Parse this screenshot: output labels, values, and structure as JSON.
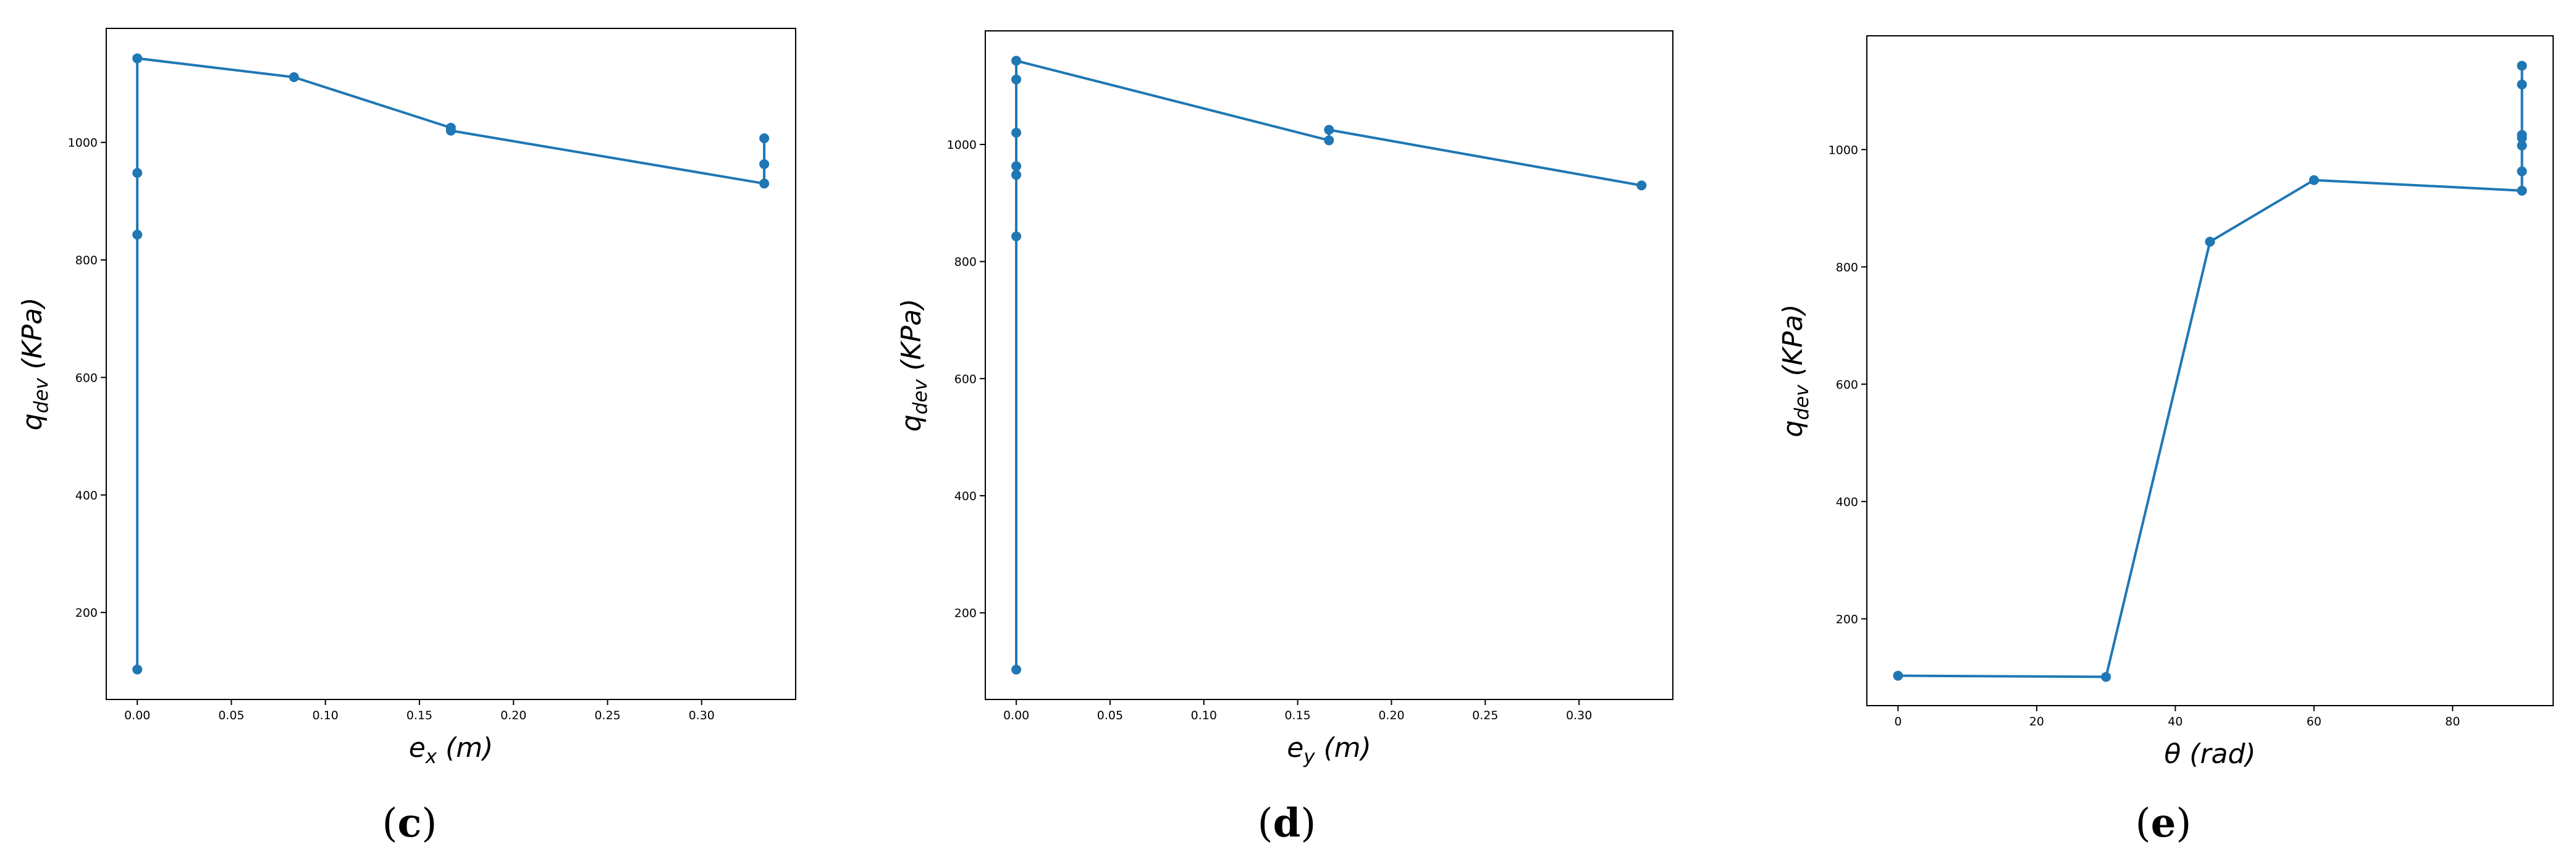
{
  "theme": {
    "series_color": "#1f77b4",
    "axes_color": "#000000"
  },
  "chart_data": [
    {
      "type": "line",
      "panel_label": "c",
      "xlabel": {
        "main": "e",
        "sub": "x",
        "unit": " (m)"
      },
      "ylabel": {
        "main": "q",
        "sub": "dev",
        "unit": " (KPa)"
      },
      "xlim": [
        -0.0165,
        0.35
      ],
      "ylim": [
        52,
        1194
      ],
      "xticks": [
        0.0,
        0.05,
        0.1,
        0.15,
        0.2,
        0.25,
        0.3
      ],
      "xtick_labels": [
        "0.00",
        "0.05",
        "0.10",
        "0.15",
        "0.20",
        "0.25",
        "0.30"
      ],
      "yticks": [
        200,
        400,
        600,
        800,
        1000
      ],
      "ytick_labels": [
        "200",
        "400",
        "600",
        "800",
        "1000"
      ],
      "grid": false,
      "legend": "none",
      "series": [
        {
          "x": [
            0.0,
            0.0,
            0.0,
            0.0,
            0.0833,
            0.1667,
            0.1667,
            0.3333,
            0.3333,
            0.3333
          ],
          "y": [
            103,
            843,
            948,
            1143,
            1111,
            1025,
            1020,
            930,
            963,
            1007
          ]
        }
      ]
    },
    {
      "type": "line",
      "panel_label": "d",
      "xlabel": {
        "main": "e",
        "sub": "y",
        "unit": " (m)"
      },
      "ylabel": {
        "main": "q",
        "sub": "dev",
        "unit": " (KPa)"
      },
      "xlim": [
        -0.0165,
        0.35
      ],
      "ylim": [
        52,
        1194
      ],
      "xticks": [
        0.0,
        0.05,
        0.1,
        0.15,
        0.2,
        0.25,
        0.3
      ],
      "xtick_labels": [
        "0.00",
        "0.05",
        "0.10",
        "0.15",
        "0.20",
        "0.25",
        "0.30"
      ],
      "yticks": [
        200,
        400,
        600,
        800,
        1000
      ],
      "ytick_labels": [
        "200",
        "400",
        "600",
        "800",
        "1000"
      ],
      "grid": false,
      "legend": "none",
      "series": [
        {
          "x": [
            0.0,
            0.0,
            0.0,
            0.0,
            0.0,
            0.0,
            0.0,
            0.1667,
            0.1667,
            0.3333
          ],
          "y": [
            103,
            843,
            948,
            963,
            1020,
            1111,
            1143,
            1007,
            1025,
            930
          ]
        }
      ]
    },
    {
      "type": "line",
      "panel_label": "e",
      "xlabel": {
        "main": "θ",
        "sub": "",
        "unit": " (rad)"
      },
      "ylabel": {
        "main": "q",
        "sub": "dev",
        "unit": " (KPa)"
      },
      "xlim": [
        -4.5,
        94.5
      ],
      "ylim": [
        52,
        1194
      ],
      "xticks": [
        0,
        20,
        40,
        60,
        80
      ],
      "xtick_labels": [
        "0",
        "20",
        "40",
        "60",
        "80"
      ],
      "yticks": [
        200,
        400,
        600,
        800,
        1000
      ],
      "ytick_labels": [
        "200",
        "400",
        "600",
        "800",
        "1000"
      ],
      "grid": false,
      "legend": "none",
      "series": [
        {
          "x": [
            0,
            30,
            45,
            60,
            90,
            90,
            90,
            90,
            90,
            90,
            90
          ],
          "y": [
            103,
            101,
            843,
            948,
            930,
            963,
            1007,
            1020,
            1025,
            1111,
            1143
          ]
        }
      ]
    }
  ]
}
